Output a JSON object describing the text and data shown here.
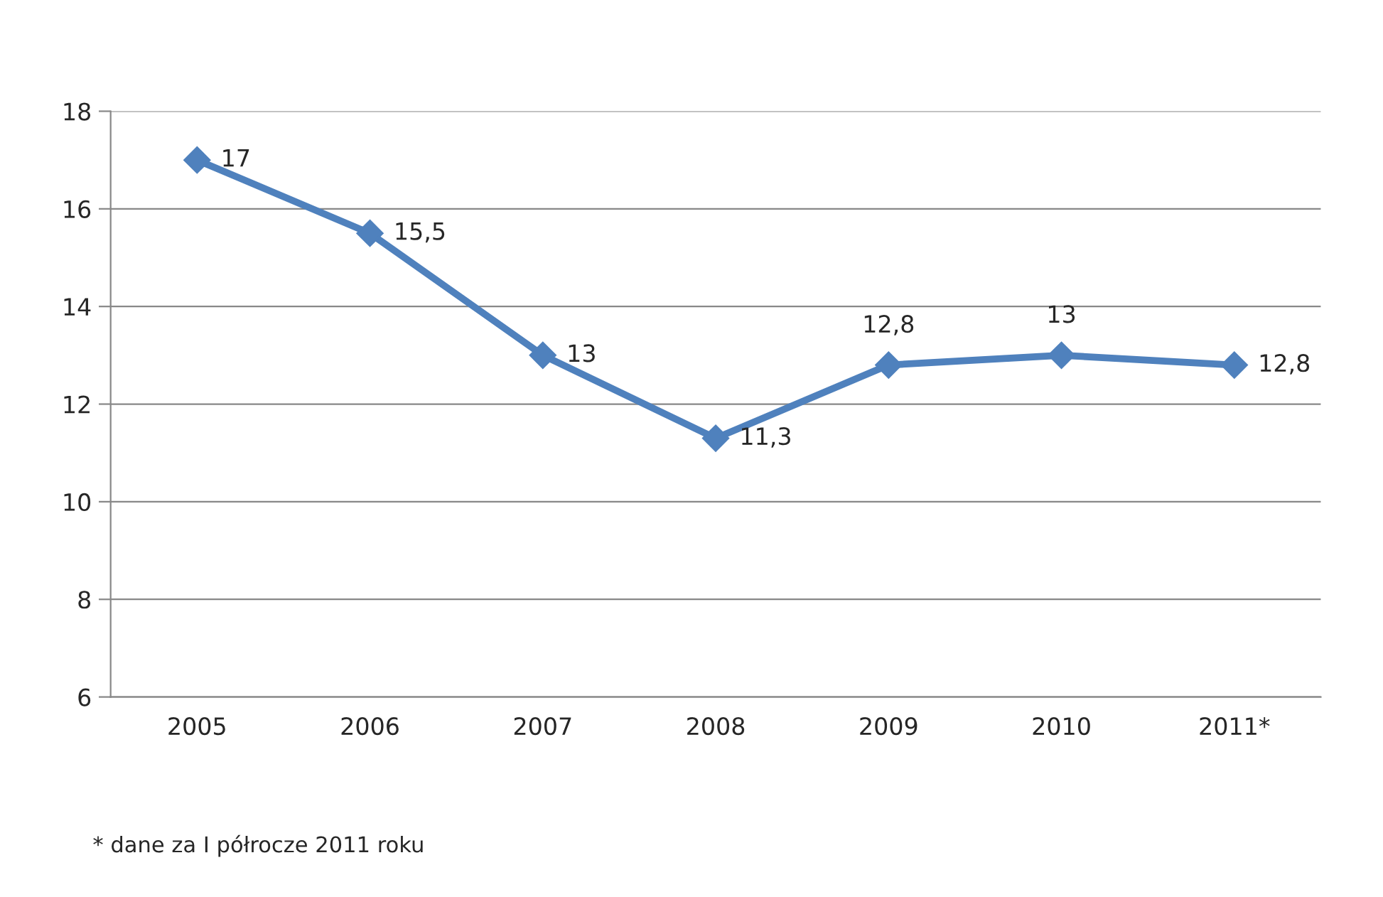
{
  "chart_data": {
    "type": "line",
    "categories": [
      "2005",
      "2006",
      "2007",
      "2008",
      "2009",
      "2010",
      "2011*"
    ],
    "series": [
      {
        "color": "#4f81bd",
        "values": [
          17,
          15.5,
          13,
          11.3,
          12.8,
          13,
          12.8
        ],
        "value_labels": [
          "17",
          "15,5",
          "13",
          "11,3",
          "12,8",
          "13",
          "12,8"
        ]
      }
    ],
    "ylim": [
      6,
      18
    ],
    "yticks": [
      6,
      8,
      10,
      12,
      14,
      16,
      18
    ],
    "grid": "y",
    "marker": "diamond",
    "line_style": "solid",
    "legend": false,
    "annotations": [
      "* dane za I półrocze 2011 roku"
    ]
  }
}
